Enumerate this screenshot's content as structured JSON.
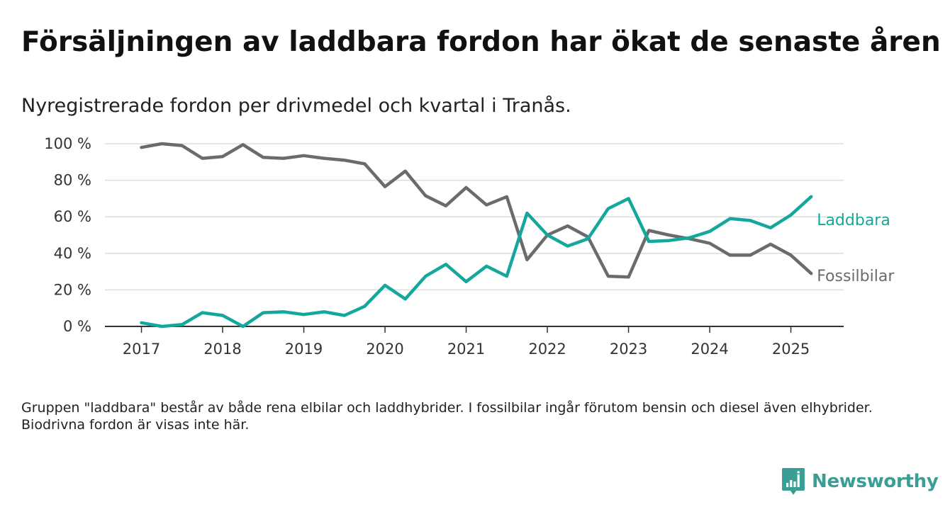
{
  "title": "Försäljningen av laddbara fordon har ökat de senaste åren",
  "subtitle": "Nyregistrerade fordon per drivmedel och kvartal i Tranås.",
  "footnote": "Gruppen \"laddbara\" består av både rena elbilar och laddhybrider. I fossilbilar ingår förutom bensin och diesel även elhybrider. Biodrivna fordon är visas inte här.",
  "logo": {
    "text": "Newsworthy",
    "icon": "bar-chart-logo-icon"
  },
  "colors": {
    "laddbara": "#13a89b",
    "fossilbilar": "#6b6b6f",
    "grid": "#dddddd",
    "axis": "#333333",
    "brand": "#3a9e95"
  },
  "chart_data": {
    "type": "line",
    "x_ticks": [
      "2017",
      "2018",
      "2019",
      "2020",
      "2021",
      "2022",
      "2023",
      "2024",
      "2025"
    ],
    "y_ticks": [
      "0 %",
      "20 %",
      "40 %",
      "60 %",
      "80 %",
      "100 %"
    ],
    "ylim": [
      0,
      100
    ],
    "xlim": [
      2016.55,
      2025.65
    ],
    "grid": "horizontal",
    "legend": "inline labels at right end of lines",
    "x": [
      2017.0,
      2017.25,
      2017.5,
      2017.75,
      2018.0,
      2018.25,
      2018.5,
      2018.75,
      2019.0,
      2019.25,
      2019.5,
      2019.75,
      2020.0,
      2020.25,
      2020.5,
      2020.75,
      2021.0,
      2021.25,
      2021.5,
      2021.75,
      2022.0,
      2022.25,
      2022.5,
      2022.75,
      2023.0,
      2023.25,
      2023.5,
      2023.75,
      2024.0,
      2024.25,
      2024.5,
      2024.75,
      2025.0,
      2025.25
    ],
    "series": [
      {
        "name": "Laddbara",
        "key": "laddbara",
        "values": [
          2,
          0,
          1,
          7.5,
          6,
          0,
          7.5,
          8,
          6.5,
          8,
          6,
          11,
          22.5,
          15,
          27.5,
          34,
          24.5,
          33,
          27.5,
          62,
          50,
          44,
          48,
          64.5,
          70,
          46.5,
          47,
          48.5,
          52,
          59,
          58,
          54,
          61,
          71
        ]
      },
      {
        "name": "Fossilbilar",
        "key": "fossilbilar",
        "values": [
          98,
          100,
          99,
          92,
          93,
          99.5,
          92.5,
          92,
          93.5,
          92,
          91,
          89,
          76.5,
          85,
          71.5,
          66,
          76,
          66.5,
          71,
          36.5,
          50,
          55,
          49,
          27.5,
          27,
          52.5,
          50,
          48,
          45.5,
          39,
          39,
          45,
          39,
          29
        ]
      }
    ]
  }
}
